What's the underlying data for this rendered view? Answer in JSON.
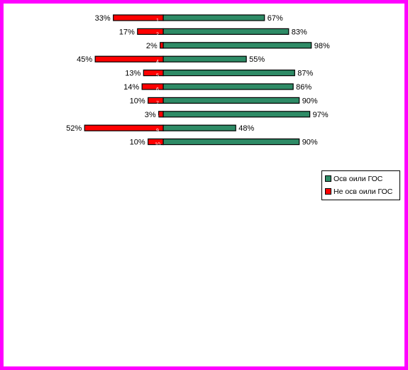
{
  "chart_data": {
    "type": "bar",
    "orientation": "horizontal-diverging",
    "categories": [
      "1",
      "2",
      "3",
      "4",
      "5",
      "6",
      "7",
      "8",
      "9",
      "10"
    ],
    "series": [
      {
        "name": "Осв оили ГОС",
        "values": [
          67,
          83,
          98,
          55,
          87,
          86,
          90,
          97,
          48,
          90
        ],
        "labels": [
          "67%",
          "83%",
          "98%",
          "55%",
          "87%",
          "86%",
          "90%",
          "97%",
          "48%",
          "90%"
        ],
        "color": "#2e8b66",
        "direction": "right"
      },
      {
        "name": "Не осв оили ГОС",
        "values": [
          33,
          17,
          2,
          45,
          13,
          14,
          10,
          3,
          52,
          10
        ],
        "labels": [
          "33%",
          "17%",
          "2%",
          "45%",
          "13%",
          "14%",
          "10%",
          "3%",
          "52%",
          "10%"
        ],
        "color": "#ff0000",
        "direction": "left"
      }
    ],
    "legend": "right",
    "grid": false,
    "xlim": [
      -100,
      100
    ]
  },
  "colors": {
    "border": "#ff00ff",
    "bar_outline": "#000000",
    "category_label": "#ffffff"
  }
}
